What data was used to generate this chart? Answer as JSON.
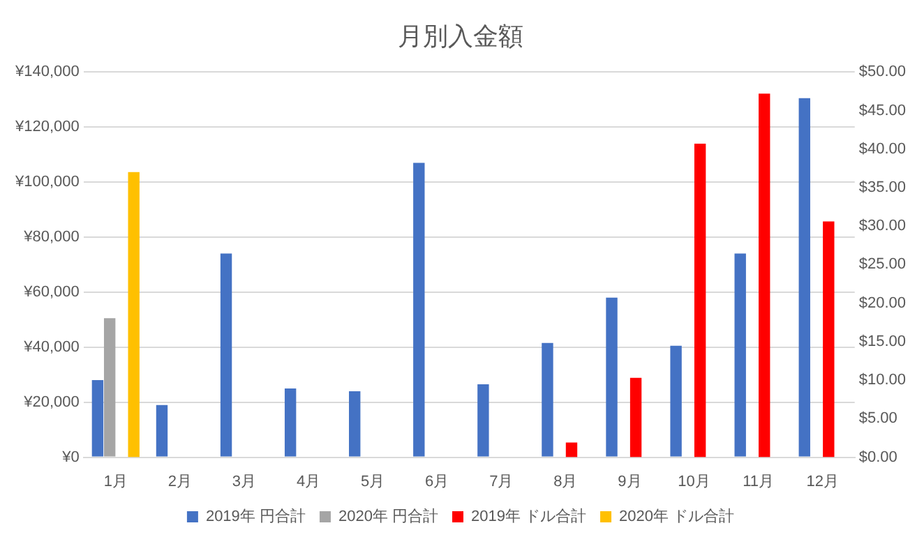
{
  "chart_data": {
    "type": "bar",
    "title": "月別入金額",
    "categories": [
      "1月",
      "2月",
      "3月",
      "4月",
      "5月",
      "6月",
      "7月",
      "8月",
      "9月",
      "10月",
      "11月",
      "12月"
    ],
    "series": [
      {
        "name": "2019年 円合計",
        "color": "#4472c4",
        "values": [
          28000,
          19000,
          74000,
          25000,
          24000,
          107000,
          26500,
          41500,
          58000,
          40500,
          74000,
          130500
        ]
      },
      {
        "name": "2020年 円合計",
        "color": "#a5a5a5",
        "values": [
          50500,
          null,
          null,
          null,
          null,
          null,
          null,
          null,
          null,
          null,
          null,
          null
        ]
      },
      {
        "name": "2019年 ドル合計",
        "color": "#ff0000",
        "axis": "y2",
        "values": [
          null,
          null,
          null,
          null,
          null,
          null,
          null,
          1.9,
          10.3,
          40.7,
          47.2,
          30.6
        ]
      },
      {
        "name": "2020年 ドル合計",
        "color": "#ffc000",
        "axis": "y2",
        "values": [
          37,
          null,
          null,
          null,
          null,
          null,
          null,
          null,
          null,
          null,
          null,
          null
        ]
      }
    ],
    "ylim": [
      0,
      140000
    ],
    "yticks": [
      {
        "value": 0,
        "label": "¥0"
      },
      {
        "value": 20000,
        "label": "¥20,000"
      },
      {
        "value": 40000,
        "label": "¥40,000"
      },
      {
        "value": 60000,
        "label": "¥60,000"
      },
      {
        "value": 80000,
        "label": "¥80,000"
      },
      {
        "value": 100000,
        "label": "¥100,000"
      },
      {
        "value": 120000,
        "label": "¥120,000"
      },
      {
        "value": 140000,
        "label": "¥140,000"
      }
    ],
    "y2lim": [
      0,
      50
    ],
    "y2ticks": [
      {
        "value": 0,
        "label": "$0.00"
      },
      {
        "value": 5,
        "label": "$5.00"
      },
      {
        "value": 10,
        "label": "$10.00"
      },
      {
        "value": 15,
        "label": "$15.00"
      },
      {
        "value": 20,
        "label": "$20.00"
      },
      {
        "value": 25,
        "label": "$25.00"
      },
      {
        "value": 30,
        "label": "$30.00"
      },
      {
        "value": 35,
        "label": "$35.00"
      },
      {
        "value": 40,
        "label": "$40.00"
      },
      {
        "value": 45,
        "label": "$45.00"
      },
      {
        "value": 50,
        "label": "$50.00"
      }
    ],
    "grid": "y",
    "legend": "bottom"
  }
}
